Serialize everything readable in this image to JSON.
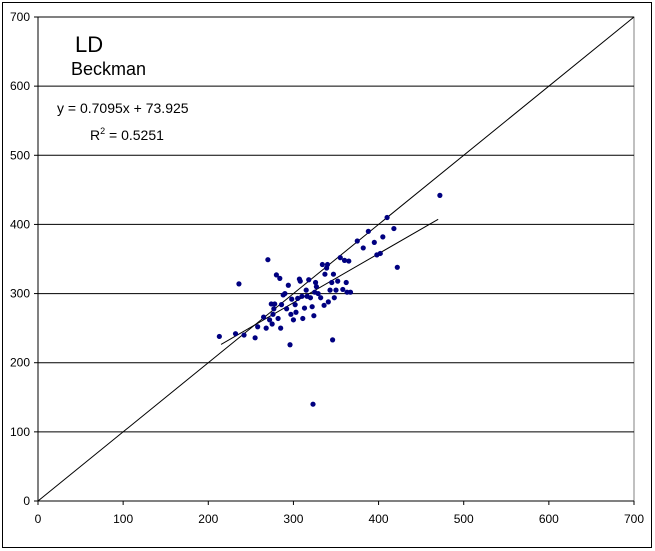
{
  "chart_data": {
    "type": "scatter",
    "title": "LD",
    "subtitle": "Beckman",
    "xlabel": "",
    "ylabel": "",
    "xlim": [
      0,
      700
    ],
    "ylim": [
      0,
      700
    ],
    "xticks": [
      "0",
      "100",
      "200",
      "300",
      "400",
      "500",
      "600",
      "700"
    ],
    "yticks": [
      "0",
      "100",
      "200",
      "300",
      "400",
      "500",
      "600",
      "700"
    ],
    "grid": "horizontal",
    "legend": "none",
    "colors": {
      "points": "#000080",
      "lines": "#000000",
      "grid": "#000000"
    },
    "identity_line": {
      "x": [
        0,
        700
      ],
      "y": [
        0,
        700
      ]
    },
    "trendline": {
      "slope": 0.7095,
      "intercept": 73.925,
      "x_range": [
        215,
        470
      ],
      "equation_text": "y = 0.7095x + 73.925",
      "r2_prefix": "R",
      "r2_sup": "2",
      "r2_suffix": " = 0.5251"
    },
    "series": [
      {
        "points": [
          [
            213,
            238
          ],
          [
            232,
            242
          ],
          [
            236,
            314
          ],
          [
            242,
            240
          ],
          [
            255,
            236
          ],
          [
            258,
            252
          ],
          [
            265,
            266
          ],
          [
            268,
            250
          ],
          [
            270,
            349
          ],
          [
            272,
            262
          ],
          [
            274,
            285
          ],
          [
            275,
            256
          ],
          [
            276,
            270
          ],
          [
            277,
            278
          ],
          [
            278,
            285
          ],
          [
            280,
            327
          ],
          [
            282,
            264
          ],
          [
            284,
            322
          ],
          [
            285,
            250
          ],
          [
            286,
            284
          ],
          [
            288,
            298
          ],
          [
            290,
            300
          ],
          [
            292,
            278
          ],
          [
            294,
            312
          ],
          [
            296,
            226
          ],
          [
            297,
            270
          ],
          [
            298,
            292
          ],
          [
            300,
            262
          ],
          [
            302,
            284
          ],
          [
            303,
            273
          ],
          [
            305,
            293
          ],
          [
            307,
            321
          ],
          [
            308,
            318
          ],
          [
            310,
            296
          ],
          [
            311,
            264
          ],
          [
            313,
            279
          ],
          [
            315,
            305
          ],
          [
            316,
            296
          ],
          [
            318,
            320
          ],
          [
            320,
            294
          ],
          [
            322,
            281
          ],
          [
            323,
            140
          ],
          [
            324,
            268
          ],
          [
            325,
            302
          ],
          [
            326,
            316
          ],
          [
            327,
            310
          ],
          [
            329,
            300
          ],
          [
            332,
            294
          ],
          [
            334,
            342
          ],
          [
            336,
            283
          ],
          [
            337,
            328
          ],
          [
            339,
            337
          ],
          [
            340,
            342
          ],
          [
            341,
            288
          ],
          [
            343,
            305
          ],
          [
            345,
            316
          ],
          [
            346,
            233
          ],
          [
            347,
            328
          ],
          [
            348,
            294
          ],
          [
            350,
            305
          ],
          [
            352,
            318
          ],
          [
            355,
            352
          ],
          [
            358,
            306
          ],
          [
            360,
            348
          ],
          [
            362,
            316
          ],
          [
            363,
            302
          ],
          [
            365,
            347
          ],
          [
            367,
            302
          ],
          [
            375,
            376
          ],
          [
            382,
            366
          ],
          [
            388,
            390
          ],
          [
            395,
            374
          ],
          [
            398,
            356
          ],
          [
            402,
            358
          ],
          [
            405,
            382
          ],
          [
            410,
            410
          ],
          [
            418,
            394
          ],
          [
            422,
            338
          ],
          [
            472,
            442
          ]
        ]
      }
    ]
  }
}
